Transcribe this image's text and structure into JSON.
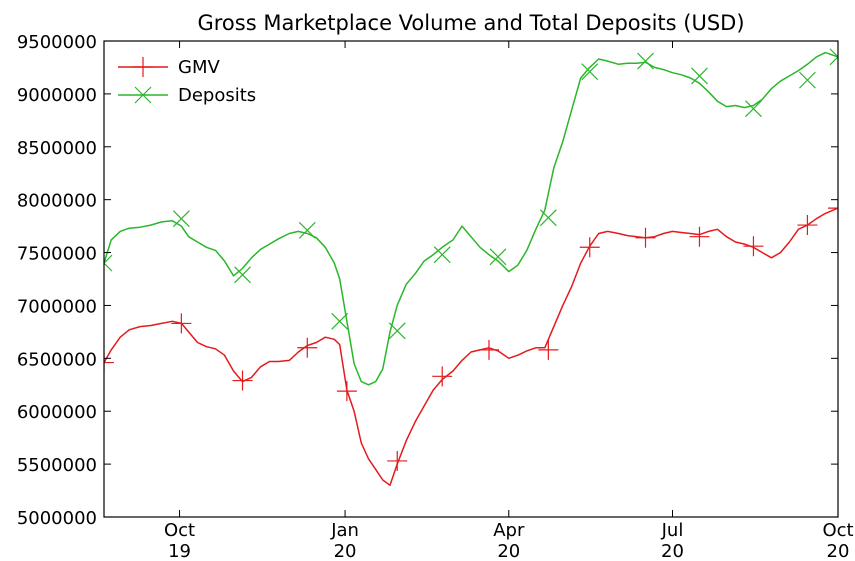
{
  "chart_data": {
    "type": "line",
    "title": "Gross Marketplace Volume and Total Deposits (USD)",
    "xlabel": "",
    "ylabel": "",
    "ylim": [
      5000000,
      9500000
    ],
    "xlim": [
      "2019-08-20",
      "2020-10-01"
    ],
    "y_ticks": [
      5000000,
      5500000,
      6000000,
      6500000,
      7000000,
      7500000,
      8000000,
      8500000,
      9000000,
      9500000
    ],
    "y_tick_labels": [
      "5000000",
      "5500000",
      "6000000",
      "6500000",
      "7000000",
      "7500000",
      "8000000",
      "8500000",
      "9000000",
      "9500000"
    ],
    "x_ticks": [
      {
        "date": "2019-10-01",
        "label1": "Oct",
        "label2": "19"
      },
      {
        "date": "2020-01-01",
        "label1": "Jan",
        "label2": "20"
      },
      {
        "date": "2020-04-01",
        "label1": "Apr",
        "label2": "20"
      },
      {
        "date": "2020-07-01",
        "label1": "Jul",
        "label2": "20"
      },
      {
        "date": "2020-10-01",
        "label1": "Oct",
        "label2": "20"
      }
    ],
    "grid": false,
    "legend_position": "top-left",
    "series": [
      {
        "name": "GMV",
        "color": "#e41a1c",
        "marker": "plus",
        "x": [
          "2019-08-20",
          "2019-08-24",
          "2019-08-29",
          "2019-09-03",
          "2019-09-09",
          "2019-09-15",
          "2019-09-21",
          "2019-09-27",
          "2019-10-02",
          "2019-10-06",
          "2019-10-11",
          "2019-10-16",
          "2019-10-21",
          "2019-10-26",
          "2019-10-31",
          "2019-11-05",
          "2019-11-10",
          "2019-11-15",
          "2019-11-20",
          "2019-11-25",
          "2019-12-01",
          "2019-12-06",
          "2019-12-11",
          "2019-12-16",
          "2019-12-21",
          "2019-12-26",
          "2019-12-29",
          "2020-01-02",
          "2020-01-06",
          "2020-01-10",
          "2020-01-14",
          "2020-01-18",
          "2020-01-22",
          "2020-01-26",
          "2020-01-30",
          "2020-02-04",
          "2020-02-09",
          "2020-02-14",
          "2020-02-19",
          "2020-02-24",
          "2020-03-01",
          "2020-03-06",
          "2020-03-11",
          "2020-03-16",
          "2020-03-21",
          "2020-03-26",
          "2020-04-01",
          "2020-04-06",
          "2020-04-11",
          "2020-04-16",
          "2020-04-21",
          "2020-04-26",
          "2020-05-01",
          "2020-05-06",
          "2020-05-11",
          "2020-05-16",
          "2020-05-21",
          "2020-05-26",
          "2020-06-01",
          "2020-06-06",
          "2020-06-11",
          "2020-06-16",
          "2020-06-21",
          "2020-06-26",
          "2020-07-01",
          "2020-07-06",
          "2020-07-11",
          "2020-07-16",
          "2020-07-21",
          "2020-07-26",
          "2020-07-31",
          "2020-08-05",
          "2020-08-10",
          "2020-08-15",
          "2020-08-20",
          "2020-08-25",
          "2020-08-30",
          "2020-09-04",
          "2020-09-09",
          "2020-09-14",
          "2020-09-19",
          "2020-09-24",
          "2020-10-01"
        ],
        "values": [
          6460000,
          6580000,
          6700000,
          6770000,
          6800000,
          6810000,
          6830000,
          6850000,
          6830000,
          6750000,
          6650000,
          6610000,
          6590000,
          6530000,
          6380000,
          6280000,
          6320000,
          6420000,
          6470000,
          6470000,
          6480000,
          6560000,
          6620000,
          6650000,
          6700000,
          6680000,
          6630000,
          6200000,
          6000000,
          5700000,
          5550000,
          5450000,
          5350000,
          5300000,
          5500000,
          5720000,
          5900000,
          6050000,
          6200000,
          6300000,
          6380000,
          6480000,
          6560000,
          6580000,
          6600000,
          6570000,
          6500000,
          6530000,
          6570000,
          6600000,
          6600000,
          6800000,
          7000000,
          7180000,
          7400000,
          7560000,
          7680000,
          7700000,
          7680000,
          7660000,
          7650000,
          7640000,
          7650000,
          7680000,
          7700000,
          7690000,
          7680000,
          7670000,
          7700000,
          7720000,
          7650000,
          7600000,
          7580000,
          7550000,
          7500000,
          7450000,
          7500000,
          7600000,
          7720000,
          7760000,
          7820000,
          7870000,
          7920000
        ]
      },
      {
        "name": "Deposits",
        "color": "#2ab72a",
        "marker": "x",
        "x": [
          "2019-08-20",
          "2019-08-24",
          "2019-08-29",
          "2019-09-03",
          "2019-09-09",
          "2019-09-15",
          "2019-09-21",
          "2019-09-27",
          "2019-10-02",
          "2019-10-06",
          "2019-10-11",
          "2019-10-16",
          "2019-10-21",
          "2019-10-26",
          "2019-10-31",
          "2019-11-05",
          "2019-11-10",
          "2019-11-15",
          "2019-11-20",
          "2019-11-25",
          "2019-12-01",
          "2019-12-06",
          "2019-12-11",
          "2019-12-16",
          "2019-12-21",
          "2019-12-26",
          "2019-12-29",
          "2020-01-02",
          "2020-01-06",
          "2020-01-10",
          "2020-01-14",
          "2020-01-18",
          "2020-01-22",
          "2020-01-26",
          "2020-01-30",
          "2020-02-04",
          "2020-02-09",
          "2020-02-14",
          "2020-02-19",
          "2020-02-24",
          "2020-03-01",
          "2020-03-06",
          "2020-03-11",
          "2020-03-16",
          "2020-03-21",
          "2020-03-26",
          "2020-04-01",
          "2020-04-06",
          "2020-04-11",
          "2020-04-16",
          "2020-04-21",
          "2020-04-26",
          "2020-05-01",
          "2020-05-06",
          "2020-05-11",
          "2020-05-16",
          "2020-05-21",
          "2020-05-26",
          "2020-06-01",
          "2020-06-06",
          "2020-06-11",
          "2020-06-16",
          "2020-06-21",
          "2020-06-26",
          "2020-07-01",
          "2020-07-06",
          "2020-07-11",
          "2020-07-16",
          "2020-07-21",
          "2020-07-26",
          "2020-07-31",
          "2020-08-05",
          "2020-08-10",
          "2020-08-15",
          "2020-08-20",
          "2020-08-25",
          "2020-08-30",
          "2020-09-04",
          "2020-09-09",
          "2020-09-14",
          "2020-09-19",
          "2020-09-24",
          "2020-10-01"
        ],
        "values": [
          7400000,
          7620000,
          7700000,
          7730000,
          7740000,
          7760000,
          7790000,
          7800000,
          7750000,
          7650000,
          7600000,
          7550000,
          7520000,
          7420000,
          7280000,
          7350000,
          7450000,
          7530000,
          7580000,
          7630000,
          7680000,
          7700000,
          7680000,
          7640000,
          7550000,
          7400000,
          7250000,
          6850000,
          6450000,
          6280000,
          6250000,
          6280000,
          6400000,
          6750000,
          7000000,
          7200000,
          7300000,
          7420000,
          7480000,
          7550000,
          7620000,
          7750000,
          7650000,
          7550000,
          7480000,
          7420000,
          7320000,
          7380000,
          7520000,
          7720000,
          7900000,
          8300000,
          8550000,
          8850000,
          9150000,
          9250000,
          9330000,
          9310000,
          9280000,
          9290000,
          9290000,
          9300000,
          9250000,
          9230000,
          9200000,
          9180000,
          9150000,
          9100000,
          9020000,
          8930000,
          8880000,
          8890000,
          8870000,
          8890000,
          8950000,
          9050000,
          9120000,
          9170000,
          9220000,
          9280000,
          9350000,
          9390000,
          9350000
        ]
      }
    ],
    "marker_points": {
      "GMV": [
        [
          "2019-08-20",
          6460000
        ],
        [
          "2019-10-02",
          6830000
        ],
        [
          "2019-11-05",
          6290000
        ],
        [
          "2019-12-11",
          6600000
        ],
        [
          "2020-01-02",
          6190000
        ],
        [
          "2020-01-30",
          5530000
        ],
        [
          "2020-02-24",
          6330000
        ],
        [
          "2020-03-21",
          6580000
        ],
        [
          "2020-04-23",
          6580000
        ],
        [
          "2020-05-16",
          7550000
        ],
        [
          "2020-06-16",
          7640000
        ],
        [
          "2020-07-16",
          7650000
        ],
        [
          "2020-08-15",
          7560000
        ],
        [
          "2020-09-14",
          7760000
        ],
        [
          "2020-10-01",
          7920000
        ]
      ],
      "Deposits": [
        [
          "2019-08-20",
          7400000
        ],
        [
          "2019-10-02",
          7820000
        ],
        [
          "2019-11-05",
          7290000
        ],
        [
          "2019-12-11",
          7710000
        ],
        [
          "2019-12-29",
          6850000
        ],
        [
          "2020-01-30",
          6760000
        ],
        [
          "2020-02-24",
          7480000
        ],
        [
          "2020-03-26",
          7460000
        ],
        [
          "2020-04-23",
          7830000
        ],
        [
          "2020-05-16",
          9210000
        ],
        [
          "2020-06-16",
          9310000
        ],
        [
          "2020-07-16",
          9170000
        ],
        [
          "2020-08-15",
          8860000
        ],
        [
          "2020-09-14",
          9130000
        ],
        [
          "2020-10-01",
          9350000
        ]
      ]
    }
  }
}
